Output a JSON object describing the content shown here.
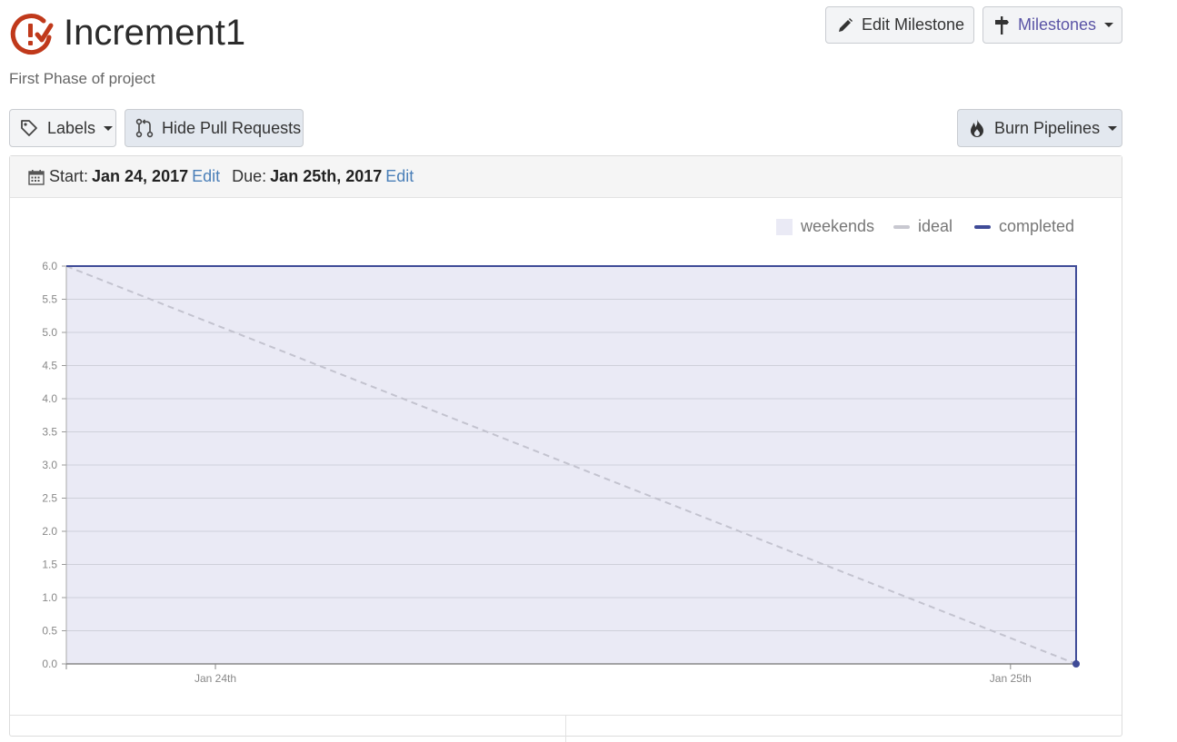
{
  "header": {
    "title": "Increment1",
    "subtitle": "First Phase of project",
    "brand_color": "#c0391b",
    "icon": "milestone-logo-icon"
  },
  "toolbar": {
    "edit_milestone_label": "Edit Milestone",
    "milestones_label": "Milestones",
    "labels_label": "Labels",
    "hide_pr_label": "Hide Pull Requests",
    "burn_pipelines_label": "Burn Pipelines",
    "milestones_color": "#5b55a6"
  },
  "dates": {
    "start_label": "Start:",
    "start_value": "Jan 24, 2017",
    "start_edit": "Edit",
    "due_label": "Due:",
    "due_value": "Jan 25th, 2017",
    "due_edit": "Edit"
  },
  "legend": {
    "weekends": "weekends",
    "ideal": "ideal",
    "completed": "completed"
  },
  "chart_data": {
    "type": "line",
    "title": "",
    "xlabel": "",
    "ylabel": "",
    "x_tick_labels": [
      "Jan 24th",
      "Jan 25th"
    ],
    "y_ticks": [
      "0.0",
      "0.5",
      "1.0",
      "1.5",
      "2.0",
      "2.5",
      "3.0",
      "3.5",
      "4.0",
      "4.5",
      "5.0",
      "5.5",
      "6.0"
    ],
    "ylim": [
      0,
      6
    ],
    "xlim": [
      "2017-01-24T00:00",
      "2017-01-25T00:00"
    ],
    "series": [
      {
        "name": "ideal",
        "style": "dashed",
        "color": "#c3c3cf",
        "points": [
          {
            "x": "2017-01-24T00:00",
            "y": 6.0
          },
          {
            "x": "2017-01-25T00:00",
            "y": 0.0
          }
        ]
      },
      {
        "name": "completed",
        "style": "solid",
        "color": "#3f4b97",
        "points": [
          {
            "x": "2017-01-24T00:00",
            "y": 6.0
          },
          {
            "x": "2017-01-25T00:00",
            "y": 6.0
          },
          {
            "x": "2017-01-25T00:00",
            "y": 0.0
          }
        ]
      }
    ],
    "weekend_shading_color": "#eaeaf5",
    "grid": true,
    "legend_position": "top-right"
  }
}
